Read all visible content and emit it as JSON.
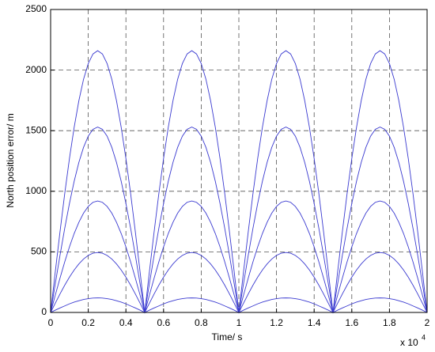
{
  "chart_data": {
    "type": "line",
    "x_label": "Time/ s",
    "y_label": "North position error/ m",
    "x_multiplier": "x 10",
    "x_exponent": "4",
    "x": [
      0,
      0.025,
      0.05,
      0.075,
      0.1,
      0.125,
      0.15,
      0.175,
      0.2,
      0.225,
      0.25,
      0.275,
      0.3,
      0.325,
      0.35,
      0.375,
      0.4,
      0.425,
      0.45,
      0.475,
      0.5,
      0.525,
      0.55,
      0.575,
      0.6,
      0.625,
      0.65,
      0.675,
      0.7,
      0.725,
      0.75,
      0.775,
      0.8,
      0.825,
      0.85,
      0.875,
      0.9,
      0.925,
      0.95,
      0.975,
      1,
      1.025,
      1.05,
      1.075,
      1.1,
      1.125,
      1.15,
      1.175,
      1.2,
      1.225,
      1.25,
      1.275,
      1.3,
      1.325,
      1.35,
      1.375,
      1.4,
      1.425,
      1.45,
      1.475,
      1.5,
      1.525,
      1.55,
      1.575,
      1.6,
      1.625,
      1.65,
      1.675,
      1.7,
      1.725,
      1.75,
      1.775,
      1.8,
      1.825,
      1.85,
      1.875,
      1.9,
      1.925,
      1.95,
      1.975,
      2
    ],
    "series": [
      {
        "color": "#3a3ad0",
        "values": [
          0,
          338,
          667,
          981,
          1270,
          1527,
          1747,
          1925,
          2054,
          2133,
          2160,
          2133,
          2054,
          1925,
          1747,
          1527,
          1270,
          981,
          667,
          338,
          0,
          338,
          667,
          981,
          1270,
          1527,
          1747,
          1925,
          2054,
          2133,
          2160,
          2133,
          2054,
          1925,
          1747,
          1527,
          1270,
          981,
          667,
          338,
          0,
          338,
          667,
          981,
          1270,
          1527,
          1747,
          1925,
          2054,
          2133,
          2160,
          2133,
          2054,
          1925,
          1747,
          1527,
          1270,
          981,
          667,
          338,
          0,
          338,
          667,
          981,
          1270,
          1527,
          1747,
          1925,
          2054,
          2133,
          2160,
          2133,
          2054,
          1925,
          1747,
          1527,
          1270,
          981,
          667,
          338,
          0
        ]
      },
      {
        "color": "#3a3ad0",
        "values": [
          0,
          239,
          473,
          695,
          899,
          1082,
          1238,
          1363,
          1455,
          1511,
          1530,
          1511,
          1455,
          1363,
          1238,
          1082,
          899,
          695,
          473,
          239,
          0,
          239,
          473,
          695,
          899,
          1082,
          1238,
          1363,
          1455,
          1511,
          1530,
          1511,
          1455,
          1363,
          1238,
          1082,
          899,
          695,
          473,
          239,
          0,
          239,
          473,
          695,
          899,
          1082,
          1238,
          1363,
          1455,
          1511,
          1530,
          1511,
          1455,
          1363,
          1238,
          1082,
          899,
          695,
          473,
          239,
          0,
          239,
          473,
          695,
          899,
          1082,
          1238,
          1363,
          1455,
          1511,
          1530,
          1511,
          1455,
          1363,
          1238,
          1082,
          899,
          695,
          473,
          239,
          0
        ]
      },
      {
        "color": "#3a3ad0",
        "values": [
          0,
          144,
          284,
          418,
          541,
          651,
          744,
          820,
          875,
          909,
          920,
          909,
          875,
          820,
          744,
          651,
          541,
          418,
          284,
          144,
          0,
          144,
          284,
          418,
          541,
          651,
          744,
          820,
          875,
          909,
          920,
          909,
          875,
          820,
          744,
          651,
          541,
          418,
          284,
          144,
          0,
          144,
          284,
          418,
          541,
          651,
          744,
          820,
          875,
          909,
          920,
          909,
          875,
          820,
          744,
          651,
          541,
          418,
          284,
          144,
          0,
          144,
          284,
          418,
          541,
          651,
          744,
          820,
          875,
          909,
          920,
          909,
          875,
          820,
          744,
          651,
          541,
          418,
          284,
          144,
          0
        ]
      },
      {
        "color": "#3a3ad0",
        "values": [
          0,
          77,
          153,
          225,
          291,
          350,
          400,
          441,
          471,
          489,
          495,
          489,
          471,
          441,
          400,
          350,
          291,
          225,
          153,
          77,
          0,
          77,
          153,
          225,
          291,
          350,
          400,
          441,
          471,
          489,
          495,
          489,
          471,
          441,
          400,
          350,
          291,
          225,
          153,
          77,
          0,
          77,
          153,
          225,
          291,
          350,
          400,
          441,
          471,
          489,
          495,
          489,
          471,
          441,
          400,
          350,
          291,
          225,
          153,
          77,
          0,
          77,
          153,
          225,
          291,
          350,
          400,
          441,
          471,
          489,
          495,
          489,
          471,
          441,
          400,
          350,
          291,
          225,
          153,
          77,
          0
        ]
      },
      {
        "color": "#3a3ad0",
        "values": [
          0,
          19,
          37,
          54,
          71,
          85,
          97,
          107,
          114,
          119,
          120,
          119,
          114,
          107,
          97,
          85,
          71,
          54,
          37,
          19,
          0,
          19,
          37,
          54,
          71,
          85,
          97,
          107,
          114,
          119,
          120,
          119,
          114,
          107,
          97,
          85,
          71,
          54,
          37,
          19,
          0,
          19,
          37,
          54,
          71,
          85,
          97,
          107,
          114,
          119,
          120,
          119,
          114,
          107,
          97,
          85,
          71,
          54,
          37,
          19,
          0,
          19,
          37,
          54,
          71,
          85,
          97,
          107,
          114,
          119,
          120,
          119,
          114,
          107,
          97,
          85,
          71,
          54,
          37,
          19,
          0
        ]
      }
    ],
    "xlim": [
      0,
      2
    ],
    "xticks": [
      0,
      0.2,
      0.4,
      0.6,
      0.8,
      1,
      1.2,
      1.4,
      1.6,
      1.8,
      2
    ],
    "ylim": [
      0,
      2500
    ],
    "yticks": [
      0,
      500,
      1000,
      1500,
      2000,
      2500
    ],
    "grid": true
  }
}
